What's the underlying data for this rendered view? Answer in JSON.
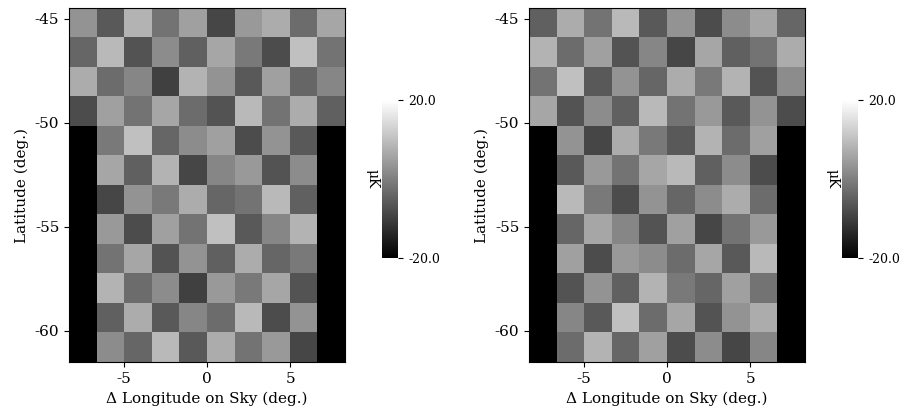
{
  "chart_data": [
    {
      "type": "heatmap",
      "x_label": "Δ Longitude on Sky (deg.)",
      "y_label": "Latitude (deg.)",
      "xlim": [
        -8.3,
        8.3
      ],
      "ylim": [
        -61.5,
        -44.5
      ],
      "xticks": [
        -5,
        0,
        5
      ],
      "yticks": [
        -60,
        -55,
        -50,
        -45
      ],
      "cells": [
        [
          3,
          -6,
          8,
          -2,
          5,
          -9,
          4,
          7,
          -3,
          6
        ],
        [
          -4,
          9,
          -7,
          2,
          -5,
          6,
          -1,
          -8,
          10,
          -2
        ],
        [
          7,
          -3,
          1,
          -10,
          8,
          3,
          -6,
          5,
          -4,
          1
        ],
        [
          -8,
          5,
          -2,
          6,
          -3,
          -7,
          9,
          -2,
          7,
          -5
        ],
        [
          null,
          -1,
          10,
          -4,
          2,
          5,
          -8,
          3,
          -6,
          null
        ],
        [
          null,
          6,
          -5,
          8,
          -9,
          1,
          4,
          -7,
          2,
          null
        ],
        [
          null,
          -9,
          3,
          -1,
          7,
          -4,
          -2,
          9,
          -5,
          null
        ],
        [
          null,
          4,
          -8,
          5,
          -2,
          10,
          -6,
          1,
          8,
          null
        ],
        [
          null,
          -2,
          6,
          -7,
          3,
          -5,
          7,
          -4,
          -1,
          null
        ],
        [
          null,
          8,
          -3,
          2,
          -10,
          4,
          -1,
          6,
          -7,
          null
        ],
        [
          null,
          -5,
          7,
          -6,
          1,
          -3,
          9,
          -8,
          3,
          null
        ],
        [
          null,
          2,
          -4,
          9,
          -6,
          7,
          -2,
          4,
          -9,
          null
        ]
      ],
      "colorbar_range": [
        -20,
        20
      ],
      "colorbar_ticks": [
        {
          "value": -20,
          "label": "-20.0"
        },
        {
          "value": 20,
          "label": "20.0"
        }
      ],
      "colorbar_label": "μK"
    },
    {
      "type": "heatmap",
      "x_label": "Δ Longitude on Sky (deg.)",
      "y_label": "Latitude (deg.)",
      "xlim": [
        -8.3,
        8.3
      ],
      "ylim": [
        -61.5,
        -44.5
      ],
      "xticks": [
        -5,
        0,
        5
      ],
      "yticks": [
        -60,
        -55,
        -50,
        -45
      ],
      "cells": [
        [
          -5,
          7,
          -2,
          9,
          -6,
          3,
          -8,
          2,
          6,
          -4
        ],
        [
          8,
          -3,
          5,
          -7,
          1,
          -9,
          6,
          -5,
          -2,
          7
        ],
        [
          -2,
          10,
          -6,
          3,
          -4,
          7,
          -1,
          8,
          -7,
          2
        ],
        [
          6,
          -7,
          2,
          -5,
          9,
          -2,
          4,
          -6,
          3,
          -8
        ],
        [
          null,
          3,
          -9,
          7,
          -1,
          -6,
          8,
          -3,
          5,
          null
        ],
        [
          null,
          -6,
          4,
          -2,
          6,
          9,
          -5,
          2,
          -8,
          null
        ],
        [
          null,
          9,
          -1,
          -8,
          3,
          -4,
          2,
          7,
          -3,
          null
        ],
        [
          null,
          -4,
          6,
          1,
          -7,
          5,
          -9,
          -2,
          4,
          null
        ],
        [
          null,
          5,
          -8,
          4,
          2,
          -3,
          6,
          -6,
          9,
          null
        ],
        [
          null,
          -7,
          3,
          -5,
          8,
          -1,
          -4,
          5,
          -2,
          null
        ],
        [
          null,
          1,
          -6,
          10,
          -3,
          6,
          -7,
          3,
          7,
          null
        ],
        [
          null,
          -3,
          8,
          -4,
          5,
          -8,
          2,
          -9,
          1,
          null
        ]
      ],
      "colorbar_range": [
        -20,
        20
      ],
      "colorbar_ticks": [
        {
          "value": -20,
          "label": "-20.0"
        },
        {
          "value": 20,
          "label": "20.0"
        }
      ],
      "colorbar_label": "μK"
    }
  ]
}
